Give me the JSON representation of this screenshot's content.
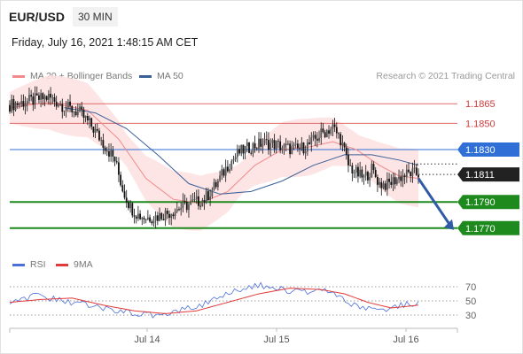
{
  "header": {
    "symbol": "EUR/USD",
    "timeframe": "30 MIN",
    "datetime": "Friday, July 16, 2021 1:48:15 AM CET"
  },
  "legend": {
    "ma20_label": "MA 20 + Bollinger Bands",
    "ma50_label": "MA 50",
    "rsi_label": "RSI",
    "rsi_ma_label": "9MA"
  },
  "credit": "Research © 2021 Trading Central",
  "colors": {
    "ma20": "#f28a8a",
    "ma50": "#3a5f96",
    "bollinger_fill": "#fde0e0",
    "resistance": "#e06a6a",
    "pivot": "#2f6fd6",
    "support": "#1e8a1e",
    "current": "#222222",
    "arrow": "#2f5aa6",
    "rsi": "#4a6fd8",
    "rsi_ma": "#e23a3a",
    "candle": "#111111"
  },
  "chart_data": [
    {
      "type": "candlestick",
      "title": "EUR/USD 30 MIN",
      "ylim": [
        1.1755,
        1.188
      ],
      "x_ticks": [
        "Jul 14",
        "Jul 15",
        "Jul 16"
      ],
      "levels": [
        {
          "value": 1.1865,
          "label": "1.1865",
          "role": "resistance"
        },
        {
          "value": 1.185,
          "label": "1.1850",
          "role": "resistance"
        },
        {
          "value": 1.183,
          "label": "1.1830",
          "role": "pivot"
        },
        {
          "value": 1.1811,
          "label": "1.1811",
          "role": "current"
        },
        {
          "value": 1.179,
          "label": "1.1790",
          "role": "support"
        },
        {
          "value": 1.177,
          "label": "1.1770",
          "role": "support"
        }
      ],
      "forecast_arrow": {
        "from": 1.1808,
        "to": 1.177
      },
      "price_path": [
        [
          0,
          1.1864
        ],
        [
          10,
          1.1867
        ],
        [
          20,
          1.187
        ],
        [
          28,
          1.1863
        ],
        [
          36,
          1.1858
        ],
        [
          42,
          1.1848
        ],
        [
          48,
          1.1835
        ],
        [
          54,
          1.1822
        ],
        [
          58,
          1.18
        ],
        [
          62,
          1.1786
        ],
        [
          66,
          1.178
        ],
        [
          70,
          1.1778
        ],
        [
          76,
          1.1779
        ],
        [
          82,
          1.1782
        ],
        [
          88,
          1.1786
        ],
        [
          94,
          1.1789
        ],
        [
          100,
          1.1792
        ],
        [
          106,
          1.1803
        ],
        [
          112,
          1.1818
        ],
        [
          118,
          1.1828
        ],
        [
          124,
          1.1832
        ],
        [
          130,
          1.1835
        ],
        [
          136,
          1.1834
        ],
        [
          142,
          1.1831
        ],
        [
          148,
          1.183
        ],
        [
          154,
          1.1834
        ],
        [
          160,
          1.1842
        ],
        [
          166,
          1.1847
        ],
        [
          170,
          1.1838
        ],
        [
          174,
          1.1818
        ],
        [
          178,
          1.1812
        ],
        [
          182,
          1.1808
        ],
        [
          186,
          1.1815
        ],
        [
          190,
          1.1804
        ],
        [
          194,
          1.1803
        ],
        [
          198,
          1.1807
        ],
        [
          202,
          1.181
        ],
        [
          206,
          1.1812
        ],
        [
          210,
          1.1811
        ]
      ],
      "ma20": [
        [
          0,
          1.1862
        ],
        [
          20,
          1.1866
        ],
        [
          40,
          1.186
        ],
        [
          56,
          1.1838
        ],
        [
          70,
          1.1808
        ],
        [
          84,
          1.1792
        ],
        [
          98,
          1.1789
        ],
        [
          112,
          1.1798
        ],
        [
          126,
          1.1818
        ],
        [
          140,
          1.183
        ],
        [
          154,
          1.1832
        ],
        [
          166,
          1.1836
        ],
        [
          178,
          1.183
        ],
        [
          190,
          1.1818
        ],
        [
          200,
          1.181
        ],
        [
          210,
          1.1808
        ]
      ],
      "ma50": [
        [
          28,
          1.1862
        ],
        [
          44,
          1.1858
        ],
        [
          60,
          1.1846
        ],
        [
          76,
          1.1826
        ],
        [
          92,
          1.1804
        ],
        [
          108,
          1.1796
        ],
        [
          124,
          1.1798
        ],
        [
          140,
          1.1806
        ],
        [
          156,
          1.1818
        ],
        [
          172,
          1.1826
        ],
        [
          186,
          1.1826
        ],
        [
          200,
          1.1822
        ],
        [
          210,
          1.1818
        ]
      ]
    },
    {
      "type": "line",
      "title": "RSI",
      "ylim": [
        20,
        80
      ],
      "y_ticks": [
        70,
        50,
        30
      ],
      "series": [
        {
          "name": "RSI",
          "values": [
            [
              0,
              50
            ],
            [
              8,
              54
            ],
            [
              16,
              58
            ],
            [
              24,
              52
            ],
            [
              32,
              48
            ],
            [
              40,
              44
            ],
            [
              48,
              40
            ],
            [
              56,
              36
            ],
            [
              64,
              32
            ],
            [
              72,
              30
            ],
            [
              80,
              32
            ],
            [
              88,
              38
            ],
            [
              96,
              42
            ],
            [
              104,
              50
            ],
            [
              112,
              60
            ],
            [
              120,
              68
            ],
            [
              128,
              72
            ],
            [
              136,
              68
            ],
            [
              144,
              64
            ],
            [
              152,
              62
            ],
            [
              160,
              66
            ],
            [
              166,
              62
            ],
            [
              172,
              50
            ],
            [
              180,
              40
            ],
            [
              188,
              38
            ],
            [
              196,
              40
            ],
            [
              204,
              46
            ],
            [
              210,
              47
            ]
          ]
        },
        {
          "name": "9MA",
          "values": [
            [
              0,
              48
            ],
            [
              16,
              52
            ],
            [
              32,
              54
            ],
            [
              48,
              44
            ],
            [
              64,
              36
            ],
            [
              80,
              32
            ],
            [
              96,
              36
            ],
            [
              112,
              48
            ],
            [
              128,
              60
            ],
            [
              144,
              68
            ],
            [
              160,
              66
            ],
            [
              172,
              60
            ],
            [
              184,
              48
            ],
            [
              196,
              40
            ],
            [
              210,
              44
            ]
          ]
        }
      ]
    }
  ]
}
